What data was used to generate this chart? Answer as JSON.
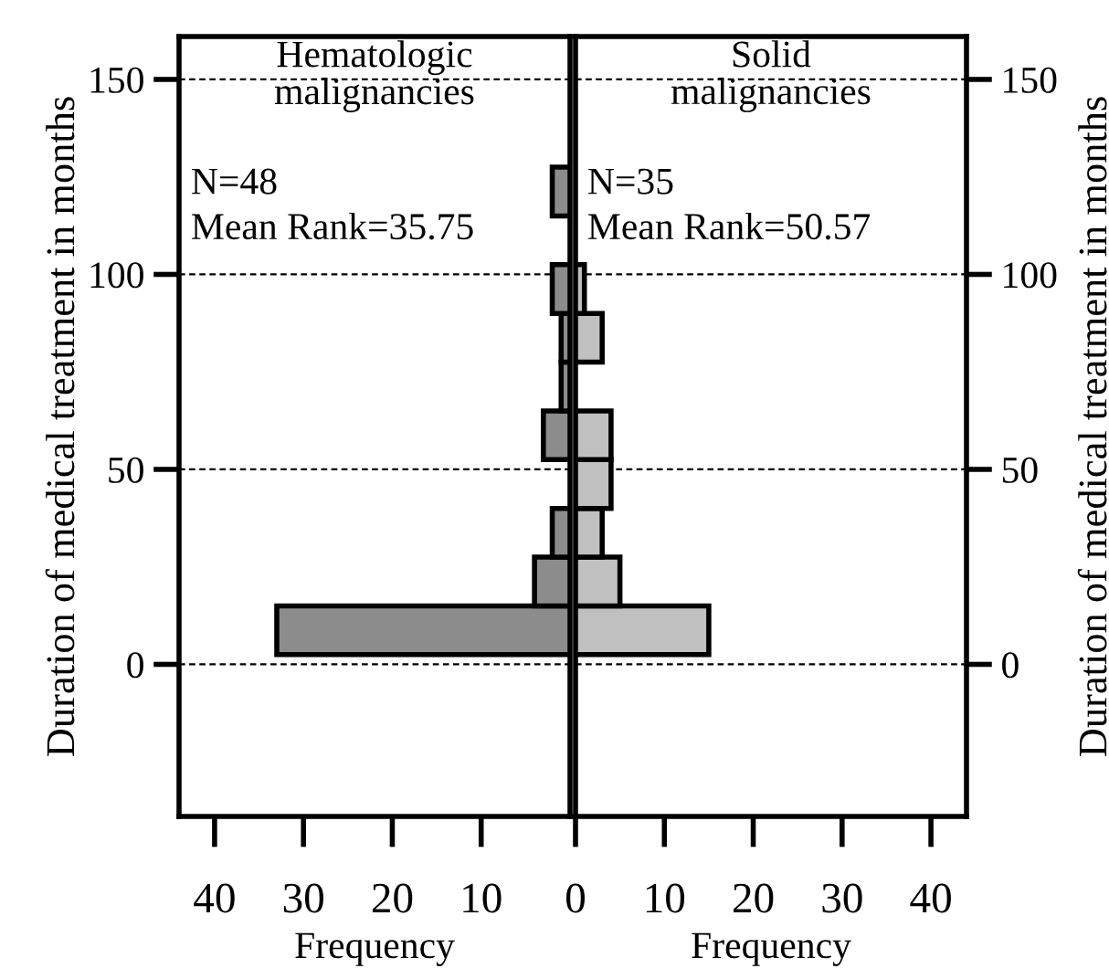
{
  "chart_data": [
    {
      "type": "histogram",
      "orientation": "horizontal",
      "title": "Hematologic\nmalignancies",
      "xlabel": "Frequency",
      "ylabel": "Duration of medical treatment in months",
      "bins": [
        2.5,
        15,
        27.5,
        40,
        52.5,
        65,
        77.5,
        90,
        102.5,
        115,
        127.5
      ],
      "values": [
        33,
        4,
        2,
        0,
        3,
        1,
        1,
        2,
        0,
        2
      ],
      "color": "#8c8c8c",
      "annotations": [
        "N=48",
        "Mean Rank=35.75"
      ],
      "xlim": [
        44,
        0
      ],
      "xticks": [
        40,
        30,
        20,
        10
      ],
      "ylim": [
        -39,
        161
      ],
      "yticks": [
        0,
        50,
        100,
        150
      ],
      "grid": "y"
    },
    {
      "type": "histogram",
      "orientation": "horizontal",
      "title": "Solid\nmalignancies",
      "xlabel": "Frequency",
      "ylabel": "Duration of medical treatment in months",
      "bins": [
        2.5,
        15,
        27.5,
        40,
        52.5,
        65,
        77.5,
        90,
        102.5
      ],
      "values": [
        15,
        5,
        3,
        4,
        4,
        0,
        3,
        1
      ],
      "color": "#c0c0c0",
      "annotations": [
        "N=35",
        "Mean Rank=50.57"
      ],
      "xlim": [
        0,
        44
      ],
      "xticks": [
        0,
        10,
        20,
        30,
        40
      ],
      "ylim": [
        -39,
        161
      ],
      "yticks": [
        0,
        50,
        100,
        150
      ],
      "grid": "y"
    }
  ]
}
